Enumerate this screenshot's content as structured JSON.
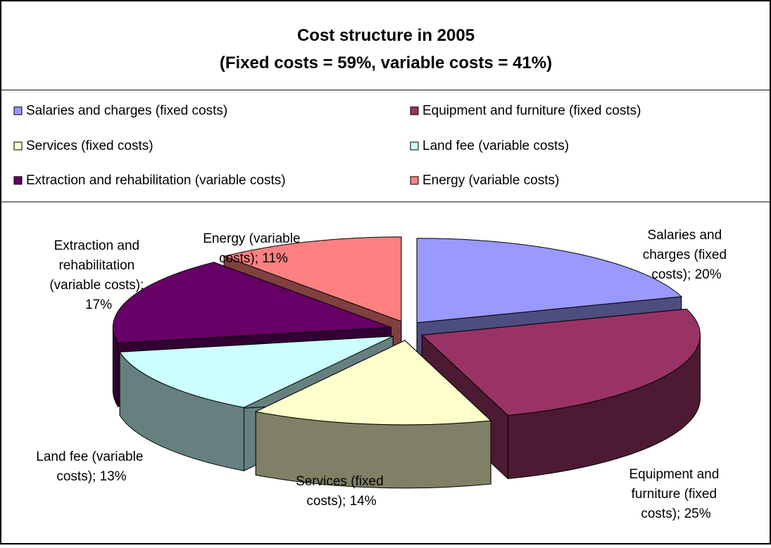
{
  "chart_data": {
    "type": "pie3d",
    "title": "Cost structure in 2005",
    "subtitle": "(Fixed costs = 59%, variable costs = 41%)",
    "categories": [
      "Salaries and charges (fixed costs)",
      "Equipment and furniture (fixed costs)",
      "Services (fixed costs)",
      "Land fee (variable costs)",
      "Extraction and rehabilitation (variable costs)",
      "Energy (variable costs)"
    ],
    "values": [
      20,
      25,
      14,
      13,
      17,
      11
    ],
    "value_labels": [
      "Salaries and charges (fixed costs); 20%",
      "Equipment and furniture (fixed costs); 25%",
      "Services (fixed costs); 14%",
      "Land fee (variable costs); 13%",
      "Extraction and rehabilitation (variable costs); 17%",
      "Energy (variable costs); 11%"
    ],
    "colors": [
      "#9999ff",
      "#993366",
      "#ffffcc",
      "#ccffff",
      "#660066",
      "#ff8080"
    ]
  }
}
